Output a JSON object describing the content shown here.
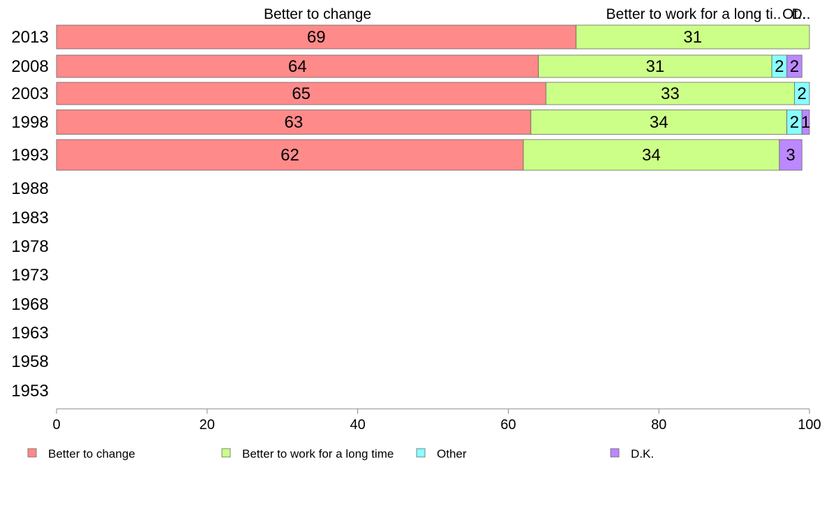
{
  "chart_data": {
    "type": "bar",
    "orientation": "horizontal",
    "stacked": true,
    "categories": [
      "2013",
      "2008",
      "2003",
      "1998",
      "1993",
      "1988",
      "1983",
      "1978",
      "1973",
      "1968",
      "1963",
      "1958",
      "1953"
    ],
    "series": [
      {
        "name": "Better to change",
        "color": "#ff8a8a",
        "values": [
          69,
          64,
          65,
          63,
          62,
          null,
          null,
          null,
          null,
          null,
          null,
          null,
          null
        ]
      },
      {
        "name": "Better to work for a long time",
        "color": "#ccff88",
        "values": [
          31,
          31,
          33,
          34,
          34,
          null,
          null,
          null,
          null,
          null,
          null,
          null,
          null
        ]
      },
      {
        "name": "Other",
        "color": "#88ffff",
        "values": [
          0,
          2,
          2,
          2,
          0,
          null,
          null,
          null,
          null,
          null,
          null,
          null,
          null
        ]
      },
      {
        "name": "D.K.",
        "color": "#bb88ff",
        "values": [
          0,
          2,
          0,
          1,
          3,
          null,
          null,
          null,
          null,
          null,
          null,
          null,
          null
        ]
      }
    ],
    "top_labels": [
      "Better to change",
      "Better to work for a long ti..",
      "Ot..",
      "D.."
    ],
    "x_ticks": [
      "0",
      "20",
      "40",
      "60",
      "80",
      "100"
    ],
    "xlim": [
      0,
      100
    ],
    "grid": false,
    "legend_position": "bottom"
  }
}
